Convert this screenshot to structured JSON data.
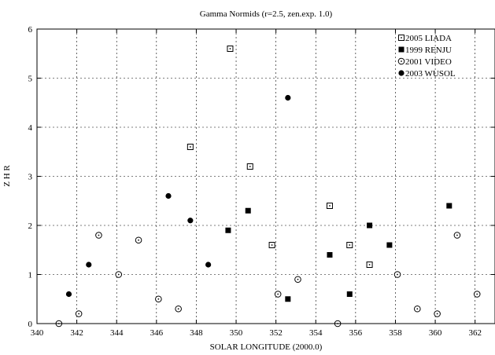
{
  "chart_data": {
    "type": "scatter",
    "title": "Gamma Normids (r=2.5, zen.exp. 1.0)",
    "xlabel": "SOLAR LONGITUDE (2000.0)",
    "ylabel": "Z H R",
    "xlim": [
      340,
      363
    ],
    "ylim": [
      0,
      6
    ],
    "xticks": [
      340,
      342,
      344,
      346,
      348,
      350,
      352,
      354,
      356,
      358,
      360,
      362
    ],
    "yticks": [
      0,
      1,
      2,
      3,
      4,
      5,
      6
    ],
    "grid": "dashed",
    "legend_position": "top-right",
    "series": [
      {
        "name": "2005 LIADA",
        "marker": "square-dot",
        "points": [
          [
            347.7,
            3.6
          ],
          [
            349.7,
            5.6
          ],
          [
            350.7,
            3.2
          ],
          [
            351.8,
            1.6
          ],
          [
            354.7,
            2.4
          ],
          [
            355.7,
            1.6
          ],
          [
            356.7,
            1.2
          ]
        ]
      },
      {
        "name": "1999 RENJU",
        "marker": "filled-square",
        "points": [
          [
            349.6,
            1.9
          ],
          [
            350.6,
            2.3
          ],
          [
            352.6,
            0.5
          ],
          [
            354.7,
            1.4
          ],
          [
            355.7,
            0.6
          ],
          [
            356.7,
            2.0
          ],
          [
            357.7,
            1.6
          ],
          [
            360.7,
            2.4
          ]
        ]
      },
      {
        "name": "2001 VIDEO",
        "marker": "circle-dot",
        "points": [
          [
            341.1,
            0.0
          ],
          [
            342.1,
            0.2
          ],
          [
            343.1,
            1.8
          ],
          [
            344.1,
            1.0
          ],
          [
            345.1,
            1.7
          ],
          [
            346.1,
            0.5
          ],
          [
            347.1,
            0.3
          ],
          [
            352.1,
            0.6
          ],
          [
            353.1,
            0.9
          ],
          [
            355.1,
            0.0
          ],
          [
            358.1,
            1.0
          ],
          [
            359.1,
            0.3
          ],
          [
            360.1,
            0.2
          ],
          [
            361.1,
            1.8
          ],
          [
            362.1,
            0.6
          ]
        ]
      },
      {
        "name": "2003 WUSOL",
        "marker": "filled-circle",
        "points": [
          [
            341.6,
            0.6
          ],
          [
            342.6,
            1.2
          ],
          [
            346.6,
            2.6
          ],
          [
            347.7,
            2.1
          ],
          [
            348.6,
            1.2
          ],
          [
            352.6,
            4.6
          ]
        ]
      }
    ]
  }
}
